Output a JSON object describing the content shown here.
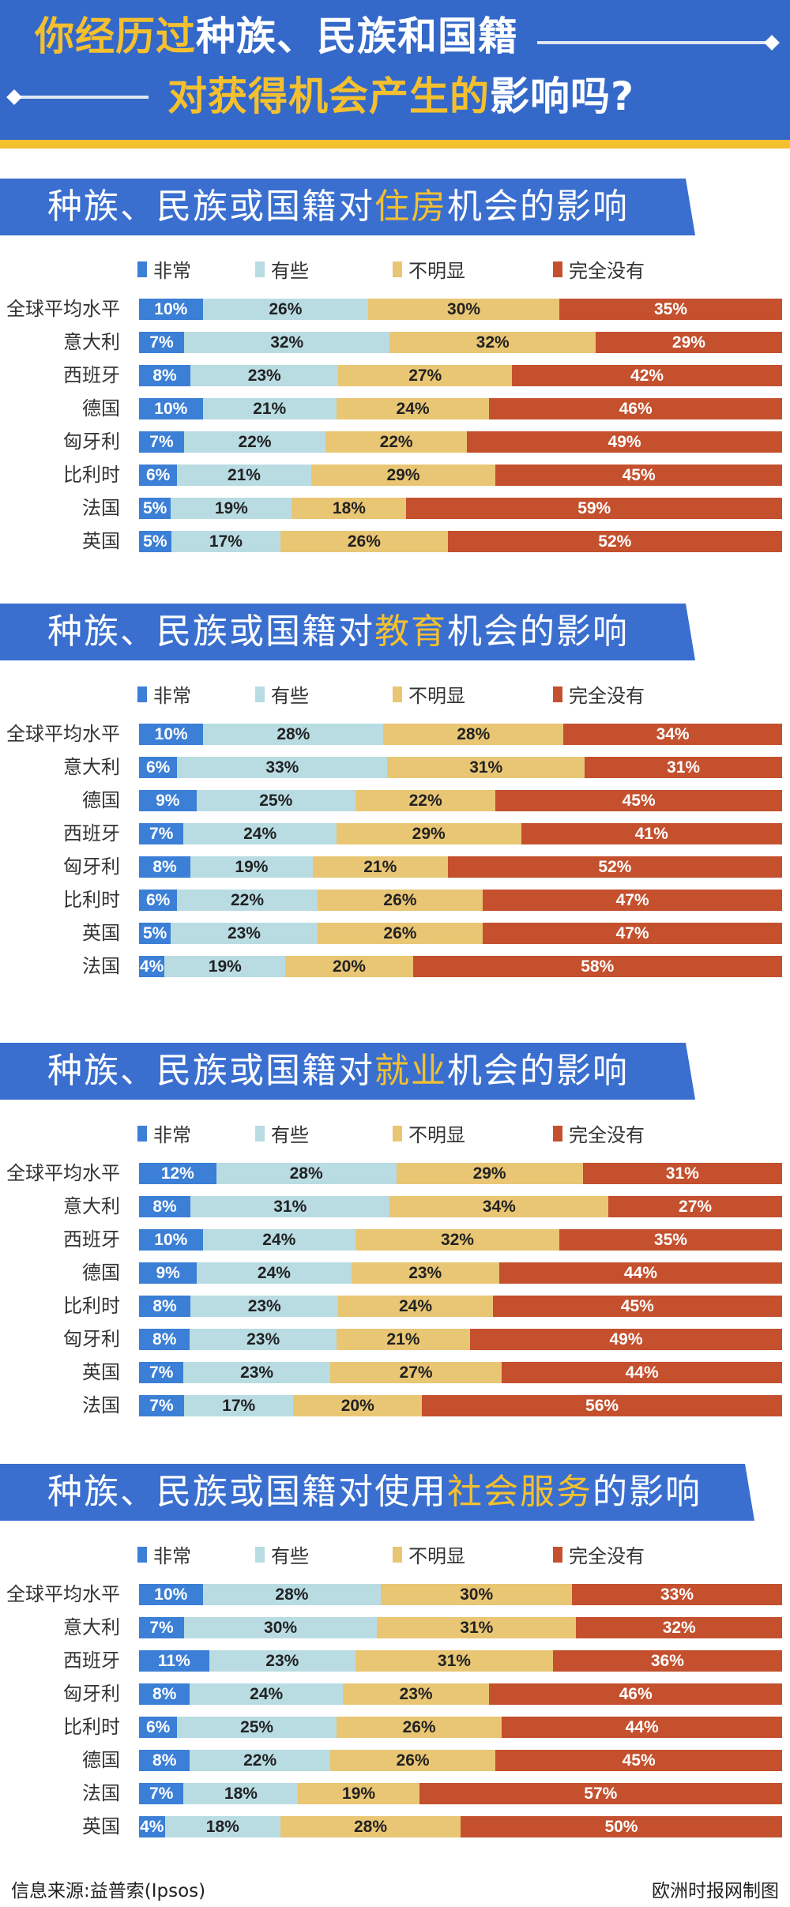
{
  "header": {
    "line1_highlight": "你经历过",
    "line1_rest": "种族、民族和国籍",
    "line2_highlight": "对获得机会产生的",
    "line2_rest": "影响吗?"
  },
  "colors": {
    "header_bg": "#3569c9",
    "accent_yellow": "#f4c02f",
    "very": "#3b7fd6",
    "some": "#b9dce3",
    "not_obvious": "#e9c674",
    "none": "#c4502e"
  },
  "legend": [
    "非常",
    "有些",
    "不明显",
    "完全没有"
  ],
  "chart_data": [
    {
      "type": "bar",
      "stacked": true,
      "orientation": "horizontal",
      "title_prefix": "种族、民族或国籍对",
      "title_highlight": "住房",
      "title_suffix": "机会的影响",
      "categories": [
        "全球平均水平",
        "意大利",
        "西班牙",
        "德国",
        "匈牙利",
        "比利时",
        "法国",
        "英国"
      ],
      "series": [
        {
          "name": "非常",
          "values": [
            10,
            7,
            8,
            10,
            7,
            6,
            5,
            5
          ]
        },
        {
          "name": "有些",
          "values": [
            26,
            32,
            23,
            21,
            22,
            21,
            19,
            17
          ]
        },
        {
          "name": "不明显",
          "values": [
            30,
            32,
            27,
            24,
            22,
            29,
            18,
            26
          ]
        },
        {
          "name": "完全没有",
          "values": [
            35,
            29,
            42,
            46,
            49,
            45,
            59,
            52
          ]
        }
      ],
      "unit": "%"
    },
    {
      "type": "bar",
      "stacked": true,
      "orientation": "horizontal",
      "title_prefix": "种族、民族或国籍对",
      "title_highlight": "教育",
      "title_suffix": "机会的影响",
      "categories": [
        "全球平均水平",
        "意大利",
        "德国",
        "西班牙",
        "匈牙利",
        "比利时",
        "英国",
        "法国"
      ],
      "series": [
        {
          "name": "非常",
          "values": [
            10,
            6,
            9,
            7,
            8,
            6,
            5,
            4
          ]
        },
        {
          "name": "有些",
          "values": [
            28,
            33,
            25,
            24,
            19,
            22,
            23,
            19
          ]
        },
        {
          "name": "不明显",
          "values": [
            28,
            31,
            22,
            29,
            21,
            26,
            26,
            20
          ]
        },
        {
          "name": "完全没有",
          "values": [
            34,
            31,
            45,
            41,
            52,
            47,
            47,
            58
          ]
        }
      ],
      "unit": "%"
    },
    {
      "type": "bar",
      "stacked": true,
      "orientation": "horizontal",
      "title_prefix": "种族、民族或国籍对",
      "title_highlight": "就业",
      "title_suffix": "机会的影响",
      "categories": [
        "全球平均水平",
        "意大利",
        "西班牙",
        "德国",
        "比利时",
        "匈牙利",
        "英国",
        "法国"
      ],
      "series": [
        {
          "name": "非常",
          "values": [
            12,
            8,
            10,
            9,
            8,
            8,
            7,
            7
          ]
        },
        {
          "name": "有些",
          "values": [
            28,
            31,
            24,
            24,
            23,
            23,
            23,
            17
          ]
        },
        {
          "name": "不明显",
          "values": [
            29,
            34,
            32,
            23,
            24,
            21,
            27,
            20
          ]
        },
        {
          "name": "完全没有",
          "values": [
            31,
            27,
            35,
            44,
            45,
            49,
            44,
            56
          ]
        }
      ],
      "unit": "%"
    },
    {
      "type": "bar",
      "stacked": true,
      "orientation": "horizontal",
      "title_prefix": "种族、民族或国籍对使用",
      "title_highlight": "社会服务",
      "title_suffix": "的影响",
      "categories": [
        "全球平均水平",
        "意大利",
        "西班牙",
        "匈牙利",
        "比利时",
        "德国",
        "法国",
        "英国"
      ],
      "series": [
        {
          "name": "非常",
          "values": [
            10,
            7,
            11,
            8,
            6,
            8,
            7,
            4
          ]
        },
        {
          "name": "有些",
          "values": [
            28,
            30,
            23,
            24,
            25,
            22,
            18,
            18
          ]
        },
        {
          "name": "不明显",
          "values": [
            30,
            31,
            31,
            23,
            26,
            26,
            19,
            28
          ]
        },
        {
          "name": "完全没有",
          "values": [
            33,
            32,
            36,
            46,
            44,
            45,
            57,
            50
          ]
        }
      ],
      "unit": "%"
    }
  ],
  "footer": {
    "source": "信息来源:益普索(Ipsos)",
    "credit": "欧洲时报网制图"
  }
}
